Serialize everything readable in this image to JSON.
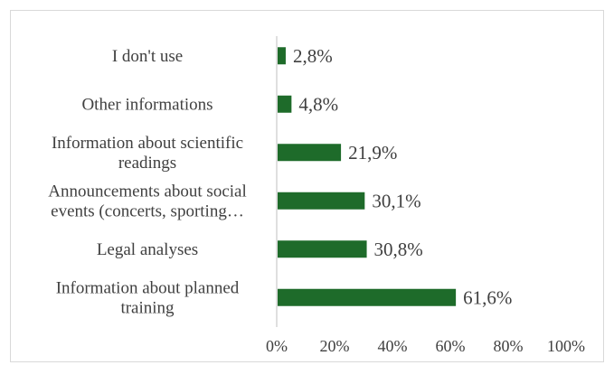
{
  "chart_data": {
    "type": "bar",
    "orientation": "horizontal",
    "categories": [
      [
        "I don't use"
      ],
      [
        "Other informations"
      ],
      [
        "Information about scientific",
        "readings"
      ],
      [
        "Announcements about social",
        "events (concerts, sporting…"
      ],
      [
        "Legal analyses"
      ],
      [
        "Information about planned",
        "training"
      ]
    ],
    "values": [
      2.8,
      4.8,
      21.9,
      30.1,
      30.8,
      61.6
    ],
    "data_labels": [
      "2,8%",
      "4,8%",
      "21,9%",
      "30,1%",
      "30,8%",
      "61,6%"
    ],
    "x_ticks": [
      "0%",
      "20%",
      "40%",
      "60%",
      "80%",
      "100%"
    ],
    "xlim": [
      0,
      100
    ],
    "bar_color": "#1e6b2a",
    "grid": false,
    "legend": "none",
    "title": "",
    "xlabel": "",
    "ylabel": ""
  }
}
